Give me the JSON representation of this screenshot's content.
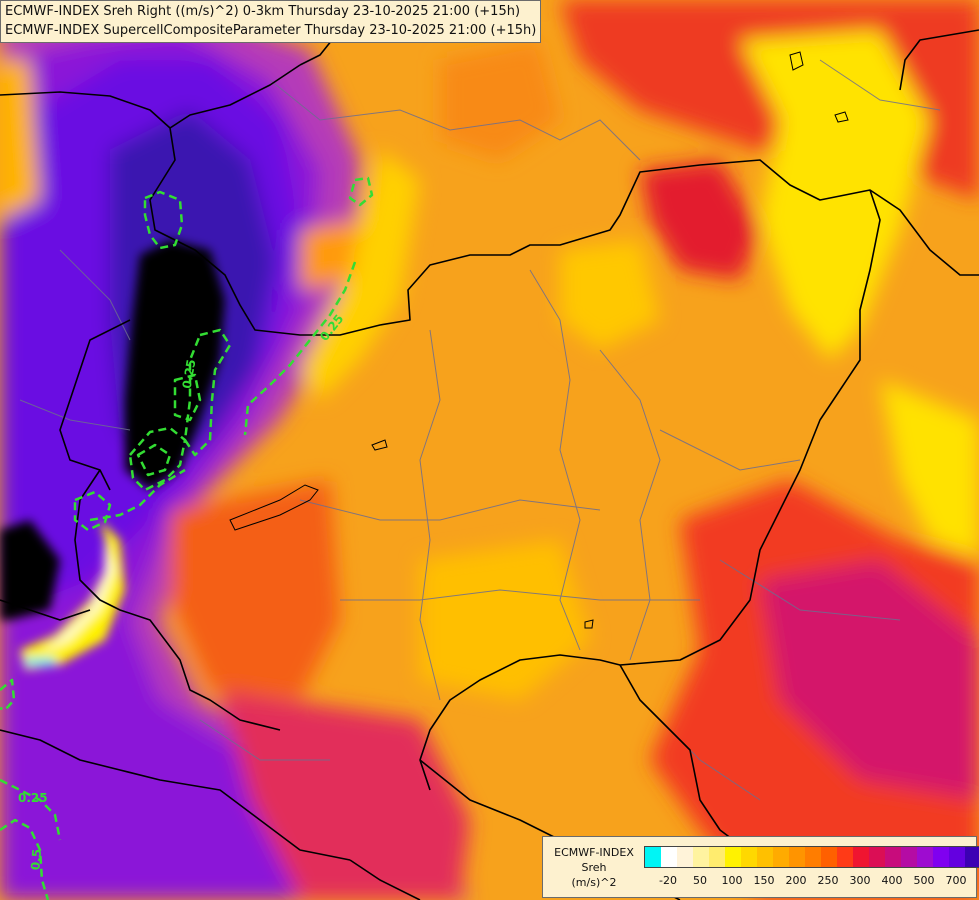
{
  "header": {
    "line1": "ECMWF-INDEX Sreh Right ((m/s)^2) 0-3km Thursday 23-10-2025 21:00 (+15h)",
    "line2": "ECMWF-INDEX SupercellCompositeParameter Thursday 23-10-2025 21:00 (+15h)"
  },
  "contour_labels": [
    "0.25",
    "0.25",
    "0.25",
    "0.5"
  ],
  "legend": {
    "title_line1": "ECMWF-INDEX",
    "title_line2": "Sreh",
    "title_line3": "(m/s)^2",
    "colors": [
      "#00f5f5",
      "#ffffff",
      "#fff3d9",
      "#fff3a0",
      "#ffec6e",
      "#fff200",
      "#ffd800",
      "#ffc000",
      "#ffab00",
      "#ff9400",
      "#ff7d00",
      "#ff6000",
      "#ff3a17",
      "#f01530",
      "#db0e55",
      "#c80c7c",
      "#b50ca4",
      "#9e0cd0",
      "#8000f0",
      "#6400e0",
      "#3c00b4",
      "#14007c"
    ],
    "ticks": [
      "-20",
      "50",
      "100",
      "150",
      "200",
      "250",
      "300",
      "400",
      "500",
      "700"
    ]
  },
  "colors": {
    "background_orange": "#f5a623",
    "contour_green": "#33dd33",
    "border_black": "#000000",
    "region_gray": "#6e6e8a"
  }
}
